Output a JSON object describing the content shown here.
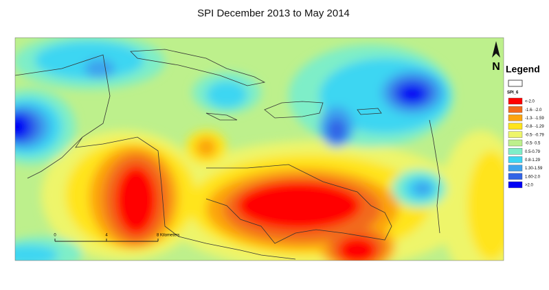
{
  "header": {
    "title": "SPI December 2013  to May 2014"
  },
  "north_arrow": {
    "label": "N"
  },
  "scale_bar": {
    "labels": [
      "0",
      "4",
      "8 Kilometers"
    ]
  },
  "legend": {
    "title": "Legend",
    "layer": "SPI_6",
    "items": [
      {
        "label": "<-2.0",
        "color": "#ff0000"
      },
      {
        "label": "-1.6- -2.0",
        "color": "#f26a1b"
      },
      {
        "label": "-1.3- -1.59",
        "color": "#fca40e"
      },
      {
        "label": "-0.8- -1.29",
        "color": "#ffe41a"
      },
      {
        "label": "-0.5- -0.79",
        "color": "#eef56a"
      },
      {
        "label": "-0.5- 0.5",
        "color": "#bdf08c"
      },
      {
        "label": "0.5-0.79",
        "color": "#7eeec8"
      },
      {
        "label": "0.8-1.29",
        "color": "#3cd6f2"
      },
      {
        "label": "1.30-1.59",
        "color": "#3ea3ee"
      },
      {
        "label": "1.60-2.0",
        "color": "#3264e6"
      },
      {
        "label": ">2.0",
        "color": "#0000f5"
      }
    ]
  }
}
